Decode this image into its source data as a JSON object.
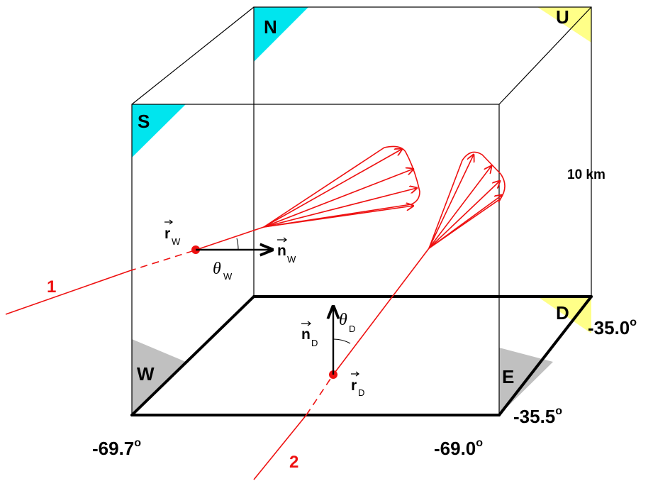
{
  "faces": {
    "north": "N",
    "south": "S",
    "up": "U",
    "down": "D",
    "west": "W",
    "east": "E"
  },
  "height_label": "10 km",
  "coordinates": {
    "lon_west": "-69.7",
    "lon_east": "-69.0",
    "lat_south": "-35.5",
    "lat_north": "-35.0",
    "degree_mark": "o"
  },
  "tracks": {
    "track_1": "1",
    "track_2": "2"
  },
  "vectors": {
    "r_w": "r",
    "r_w_sub": "W",
    "n_w": "n",
    "n_w_sub": "W",
    "theta_w": "θ",
    "theta_w_sub": "W",
    "r_d": "r",
    "r_d_sub": "D",
    "n_d": "n",
    "n_d_sub": "D",
    "theta_d": "θ",
    "theta_d_sub": "D"
  },
  "colors": {
    "cyan": "#00e5ee",
    "yellow": "#ffff88",
    "gray": "#c0c0c0",
    "red": "#ee1111",
    "black": "#000000"
  }
}
